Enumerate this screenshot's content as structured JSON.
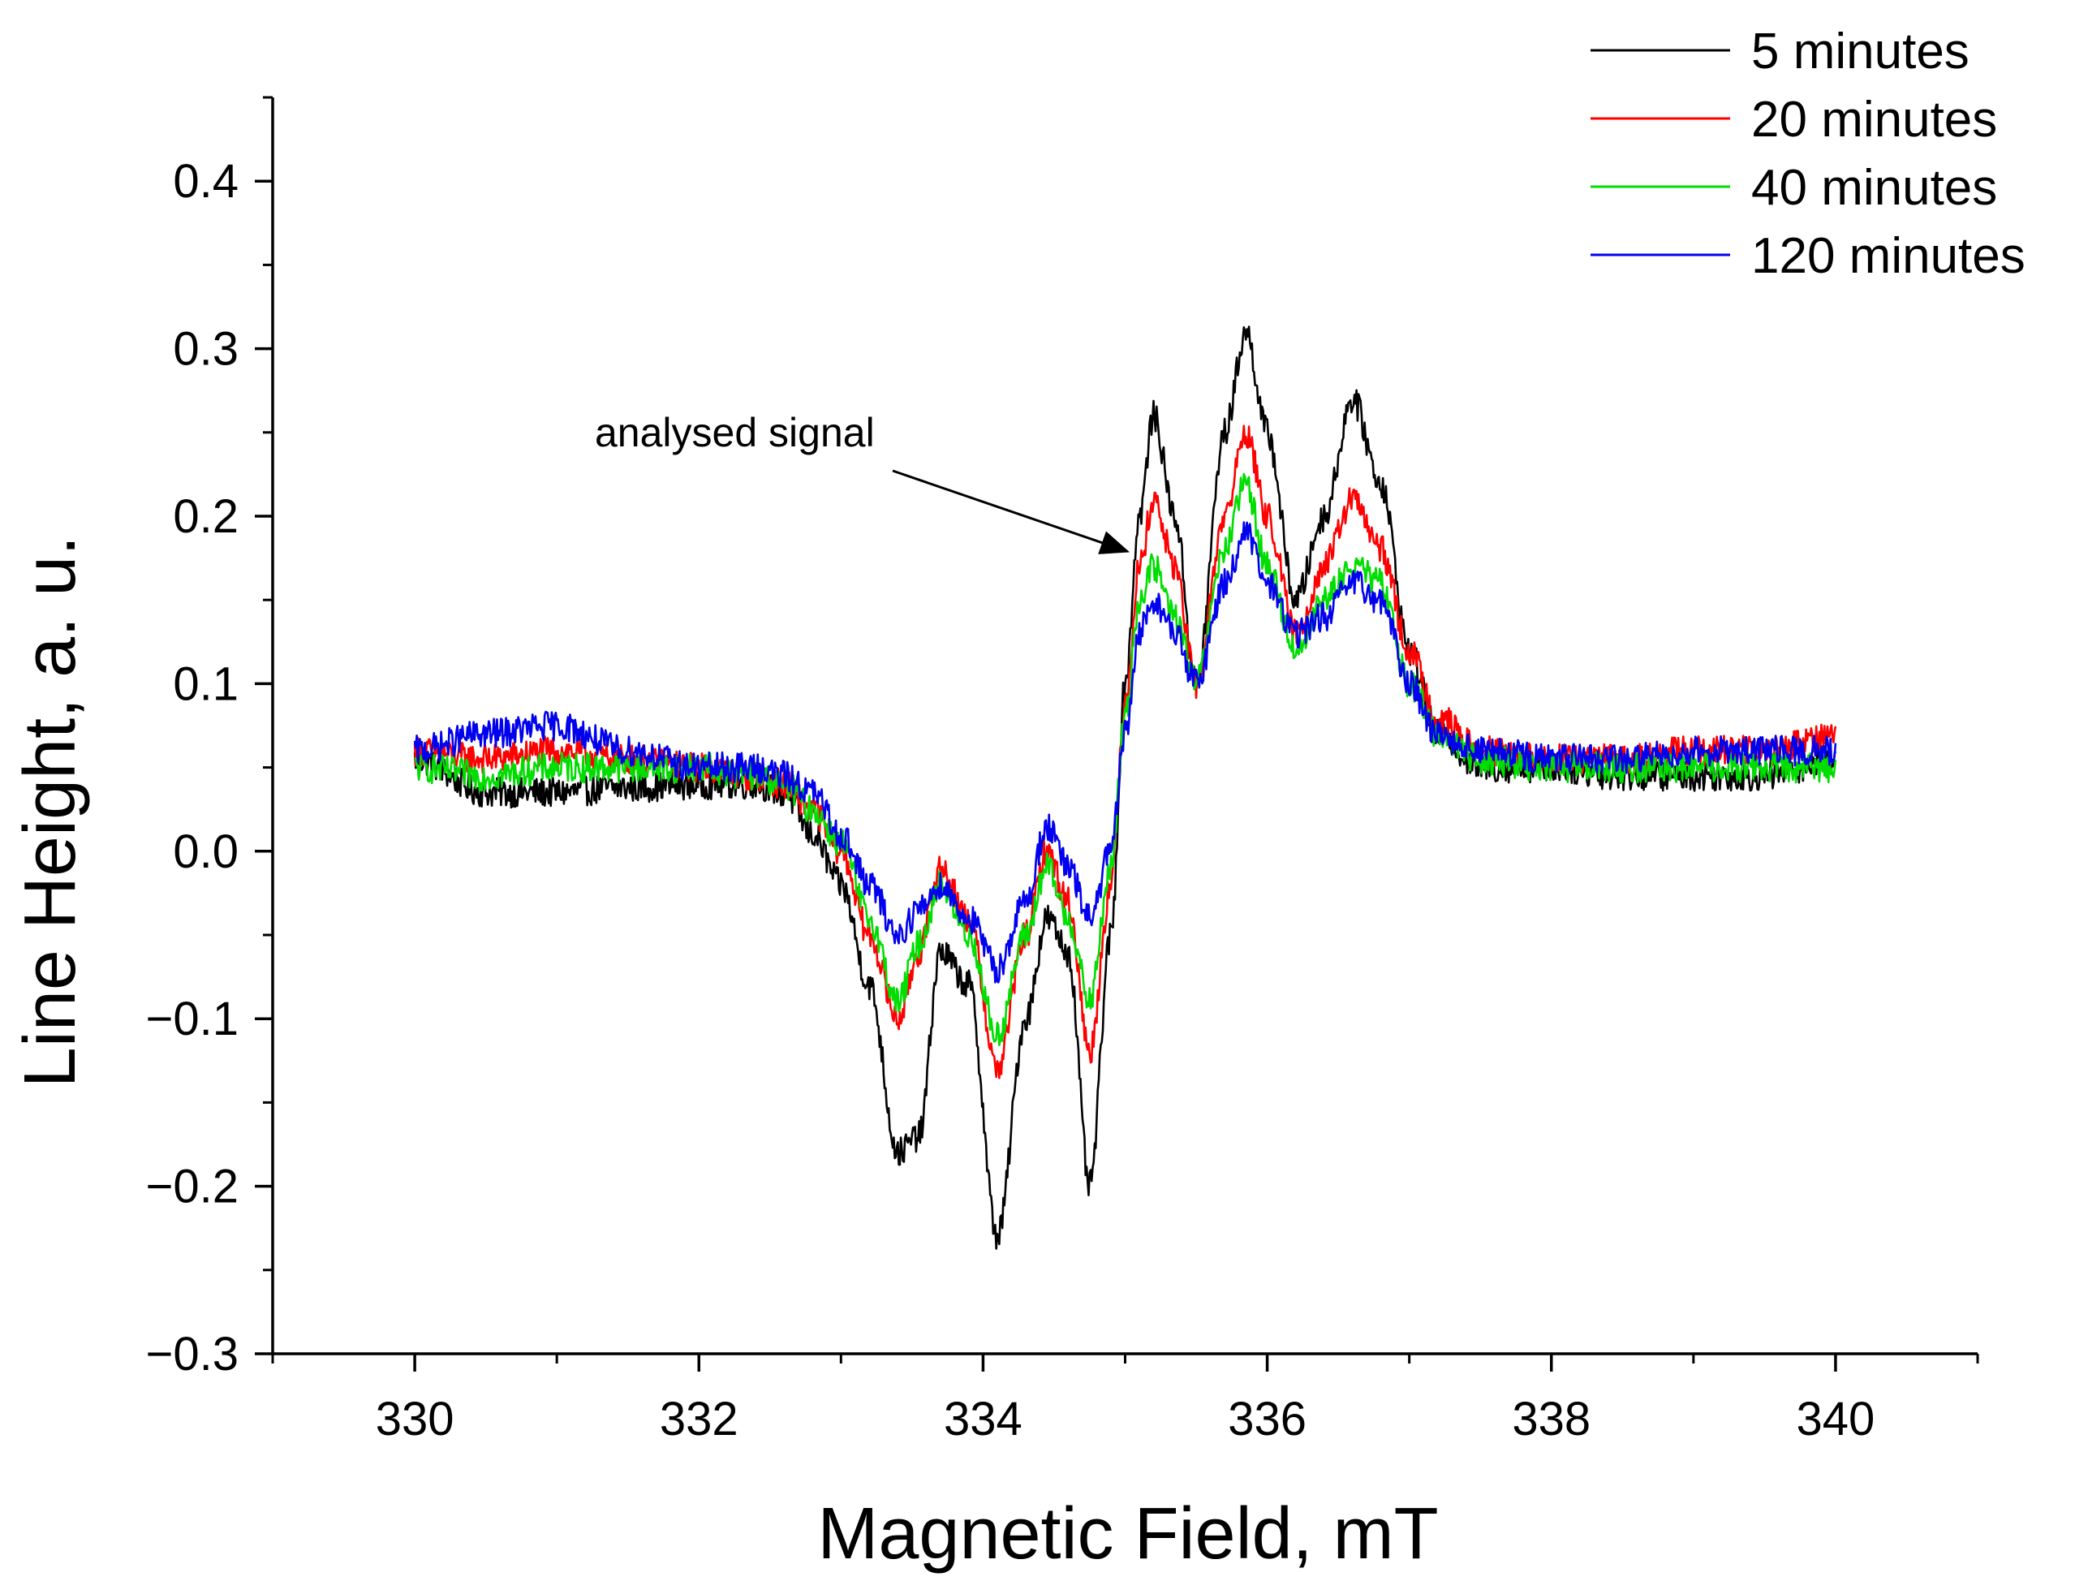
{
  "chart_data": {
    "type": "line",
    "title": "",
    "xlabel": "Magnetic Field, mT",
    "ylabel": "Line Height, a. u.",
    "xlim": [
      329,
      341
    ],
    "ylim": [
      -0.3,
      0.45
    ],
    "grid": false,
    "legend_position": "top-right",
    "x_ticks": [
      330,
      332,
      334,
      336,
      338,
      340
    ],
    "x_tick_labels": [
      "330",
      "332",
      "334",
      "336",
      "338",
      "340"
    ],
    "y_ticks": [
      -0.3,
      -0.2,
      -0.1,
      0.0,
      0.1,
      0.2,
      0.3,
      0.4
    ],
    "y_tick_labels": [
      "−0.3",
      "−0.2",
      "−0.1",
      "0.0",
      "0.1",
      "0.2",
      "0.3",
      "0.4"
    ],
    "annotation": {
      "text": "analysed signal",
      "arrow_target": [
        335.05,
        0.178
      ]
    },
    "x": [
      330.0,
      330.5,
      331.0,
      331.5,
      332.0,
      332.4,
      332.6,
      332.8,
      333.0,
      333.2,
      333.4,
      333.55,
      333.7,
      333.9,
      334.1,
      334.3,
      334.45,
      334.6,
      334.75,
      334.9,
      335.0,
      335.1,
      335.2,
      335.35,
      335.5,
      335.7,
      335.85,
      336.0,
      336.2,
      336.4,
      336.6,
      336.8,
      337.0,
      337.2,
      337.5,
      338.0,
      338.5,
      339.0,
      339.5,
      340.0
    ],
    "series": [
      {
        "name": "5 minutes",
        "color": "#000000",
        "values": [
          0.055,
          0.035,
          0.035,
          0.038,
          0.04,
          0.04,
          0.035,
          0.01,
          -0.02,
          -0.08,
          -0.18,
          -0.17,
          -0.06,
          -0.08,
          -0.23,
          -0.1,
          -0.04,
          -0.06,
          -0.2,
          -0.05,
          0.1,
          0.2,
          0.26,
          0.2,
          0.1,
          0.25,
          0.31,
          0.25,
          0.15,
          0.2,
          0.27,
          0.22,
          0.12,
          0.07,
          0.05,
          0.05,
          0.045,
          0.045,
          0.045,
          0.055
        ]
      },
      {
        "name": "20 minutes",
        "color": "#ff0000",
        "values": [
          0.06,
          0.055,
          0.06,
          0.055,
          0.05,
          0.045,
          0.04,
          0.025,
          0.0,
          -0.05,
          -0.1,
          -0.06,
          -0.01,
          -0.04,
          -0.13,
          -0.05,
          0.0,
          -0.03,
          -0.12,
          -0.02,
          0.09,
          0.17,
          0.21,
          0.17,
          0.1,
          0.2,
          0.25,
          0.2,
          0.13,
          0.17,
          0.21,
          0.18,
          0.12,
          0.08,
          0.06,
          0.055,
          0.055,
          0.06,
          0.06,
          0.07
        ]
      },
      {
        "name": "40 minutes",
        "color": "#00dd00",
        "values": [
          0.05,
          0.045,
          0.05,
          0.05,
          0.05,
          0.045,
          0.04,
          0.025,
          0.005,
          -0.04,
          -0.09,
          -0.055,
          -0.02,
          -0.05,
          -0.11,
          -0.05,
          -0.01,
          -0.04,
          -0.09,
          -0.01,
          0.08,
          0.15,
          0.17,
          0.14,
          0.1,
          0.18,
          0.22,
          0.17,
          0.12,
          0.15,
          0.17,
          0.16,
          0.1,
          0.07,
          0.055,
          0.05,
          0.05,
          0.05,
          0.05,
          0.05
        ]
      },
      {
        "name": "120 minutes",
        "color": "#0000ee",
        "values": [
          0.06,
          0.07,
          0.075,
          0.06,
          0.05,
          0.05,
          0.045,
          0.035,
          0.01,
          -0.02,
          -0.05,
          -0.035,
          -0.02,
          -0.04,
          -0.07,
          -0.03,
          0.015,
          -0.01,
          -0.04,
          0.0,
          0.07,
          0.13,
          0.15,
          0.13,
          0.1,
          0.16,
          0.19,
          0.16,
          0.13,
          0.14,
          0.16,
          0.15,
          0.1,
          0.07,
          0.06,
          0.055,
          0.055,
          0.06,
          0.06,
          0.06
        ]
      }
    ]
  }
}
